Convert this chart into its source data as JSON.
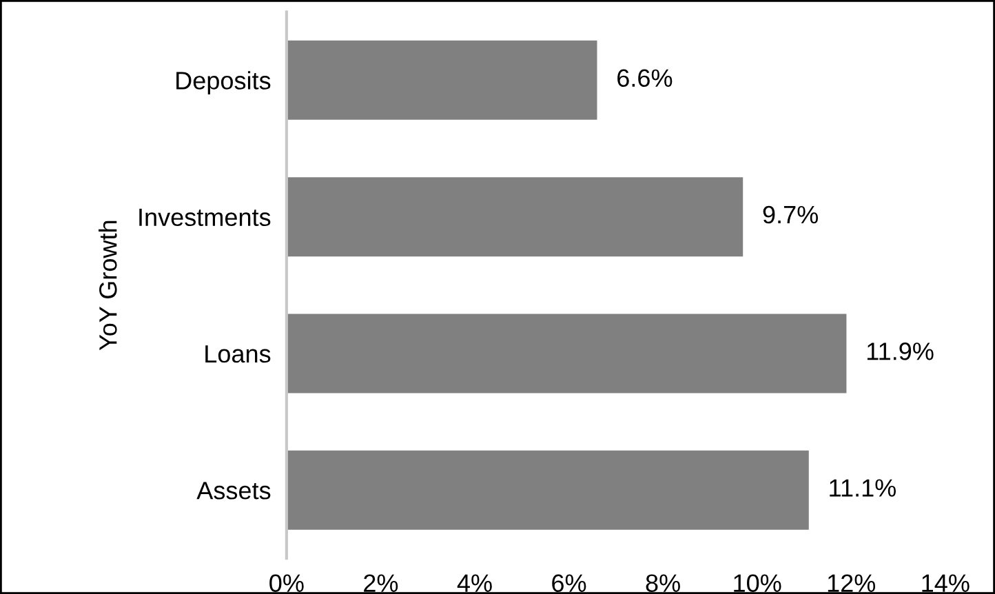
{
  "chart_data": {
    "type": "bar",
    "orientation": "horizontal",
    "ylabel": "YoY Growth",
    "categories": [
      "Deposits",
      "Investments",
      "Loans",
      "Assets"
    ],
    "series": [
      {
        "color": "#808080",
        "values": [
          6.6,
          9.7,
          11.9,
          11.1
        ]
      }
    ],
    "value_labels": [
      "6.6%",
      "9.7%",
      "11.9%",
      "11.1%"
    ],
    "xlim": [
      0,
      14
    ],
    "xticks": [
      {
        "value": 0,
        "label": "0%"
      },
      {
        "value": 2,
        "label": "2%"
      },
      {
        "value": 4,
        "label": "4%"
      },
      {
        "value": 6,
        "label": "6%"
      },
      {
        "value": 8,
        "label": "8%"
      },
      {
        "value": 10,
        "label": "10%"
      },
      {
        "value": 12,
        "label": "12%"
      },
      {
        "value": 14,
        "label": "14%"
      }
    ],
    "grid": false,
    "legend": false
  }
}
